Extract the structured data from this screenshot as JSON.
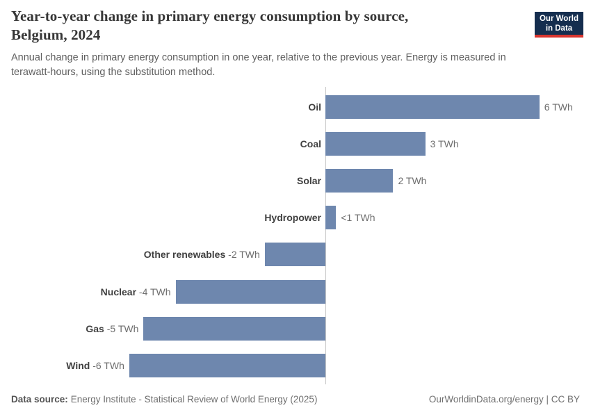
{
  "header": {
    "title_lines": [
      "Year-to-year change in primary energy consumption by source,",
      "Belgium, 2024"
    ],
    "subtitle_lines": [
      "Annual change in primary energy consumption in one year, relative to the previous year. Energy is measured in",
      "terawatt-hours, using the substitution method."
    ]
  },
  "logo": {
    "line1": "Our World",
    "line2": "in Data",
    "bg_color": "#152e4f",
    "accent_color": "#d8352f"
  },
  "chart_data": {
    "type": "bar",
    "orientation": "horizontal",
    "title": "Year-to-year change in primary energy consumption by source, Belgium, 2024",
    "unit": "TWh",
    "categories": [
      "Oil",
      "Coal",
      "Solar",
      "Hydropower",
      "Other renewables",
      "Nuclear",
      "Gas",
      "Wind"
    ],
    "values": [
      6.0,
      2.8,
      1.9,
      0.3,
      -1.7,
      -4.2,
      -5.1,
      -5.5
    ],
    "value_labels": [
      "6 TWh",
      "3 TWh",
      "2 TWh",
      "<1 TWh",
      "-2 TWh",
      "-4 TWh",
      "-5 TWh",
      "-6 TWh"
    ],
    "xlim": [
      -6.5,
      7.2
    ],
    "grid": false,
    "legend": "none",
    "bar_color": "#6e87ae",
    "axis_color": "#c6c6c6"
  },
  "footer": {
    "source_label": "Data source:",
    "source_text": "Energy Institute - Statistical Review of World Energy (2025)",
    "credit": "OurWorldinData.org/energy | CC BY"
  }
}
